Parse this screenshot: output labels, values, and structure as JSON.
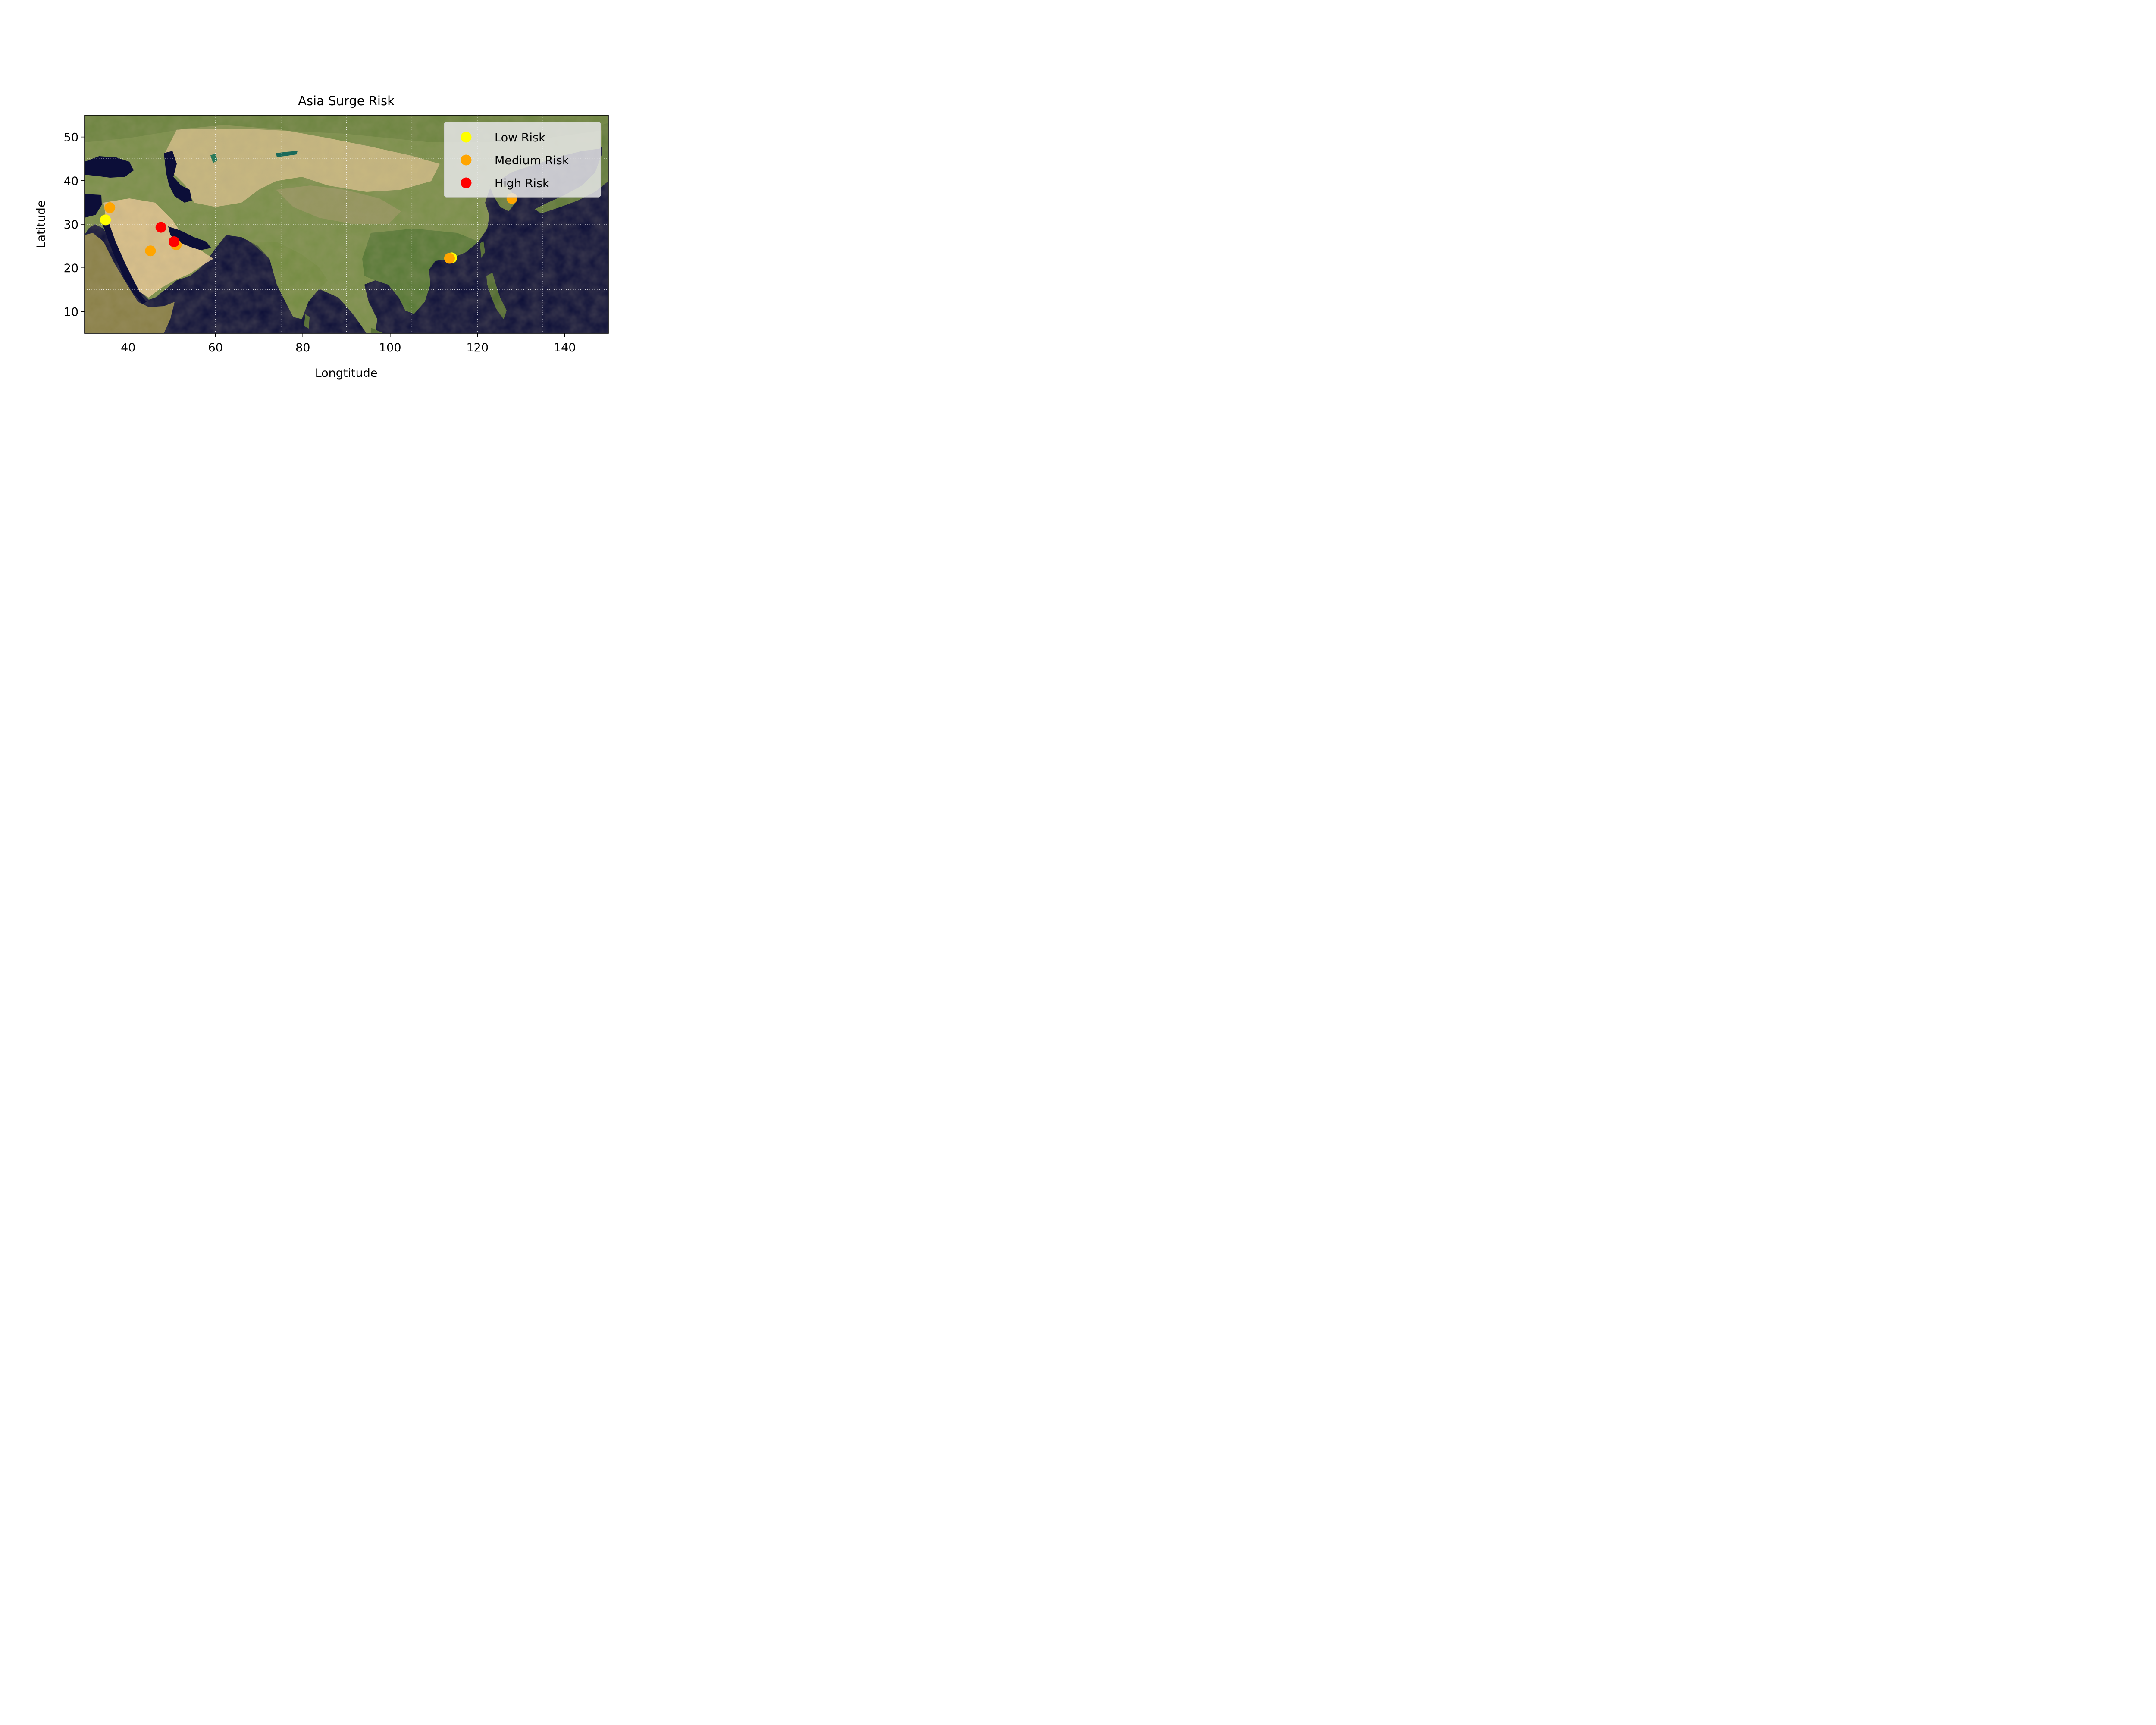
{
  "chart_data": {
    "type": "scatter",
    "title": "Asia Surge Risk",
    "xlabel": "Longtitude",
    "ylabel": "Latitude",
    "xlim": [
      30,
      150
    ],
    "ylim": [
      5,
      55
    ],
    "xticks": [
      40,
      60,
      80,
      100,
      120,
      140
    ],
    "yticks": [
      10,
      20,
      30,
      40,
      50
    ],
    "background": "satellite-relief-map-of-asia",
    "grid": {
      "style": "dotted",
      "color": "#ffffff",
      "meridians": [
        45,
        60,
        75,
        90,
        105,
        120,
        135
      ],
      "parallels": [
        15,
        30,
        45
      ]
    },
    "legend_placement": "upper-right",
    "series": [
      {
        "name": "Low Risk",
        "color": "#ffff00",
        "points": [
          {
            "x": 34.8,
            "y": 31.0
          },
          {
            "x": 114.1,
            "y": 22.3
          }
        ]
      },
      {
        "name": "Medium Risk",
        "color": "#ffa500",
        "points": [
          {
            "x": 35.8,
            "y": 33.8
          },
          {
            "x": 45.1,
            "y": 23.9
          },
          {
            "x": 51.0,
            "y": 25.3
          },
          {
            "x": 113.6,
            "y": 22.2
          },
          {
            "x": 127.9,
            "y": 35.9
          }
        ]
      },
      {
        "name": "High Risk",
        "color": "#ff0000",
        "points": [
          {
            "x": 47.5,
            "y": 29.3
          },
          {
            "x": 50.5,
            "y": 26.0
          }
        ]
      }
    ]
  }
}
